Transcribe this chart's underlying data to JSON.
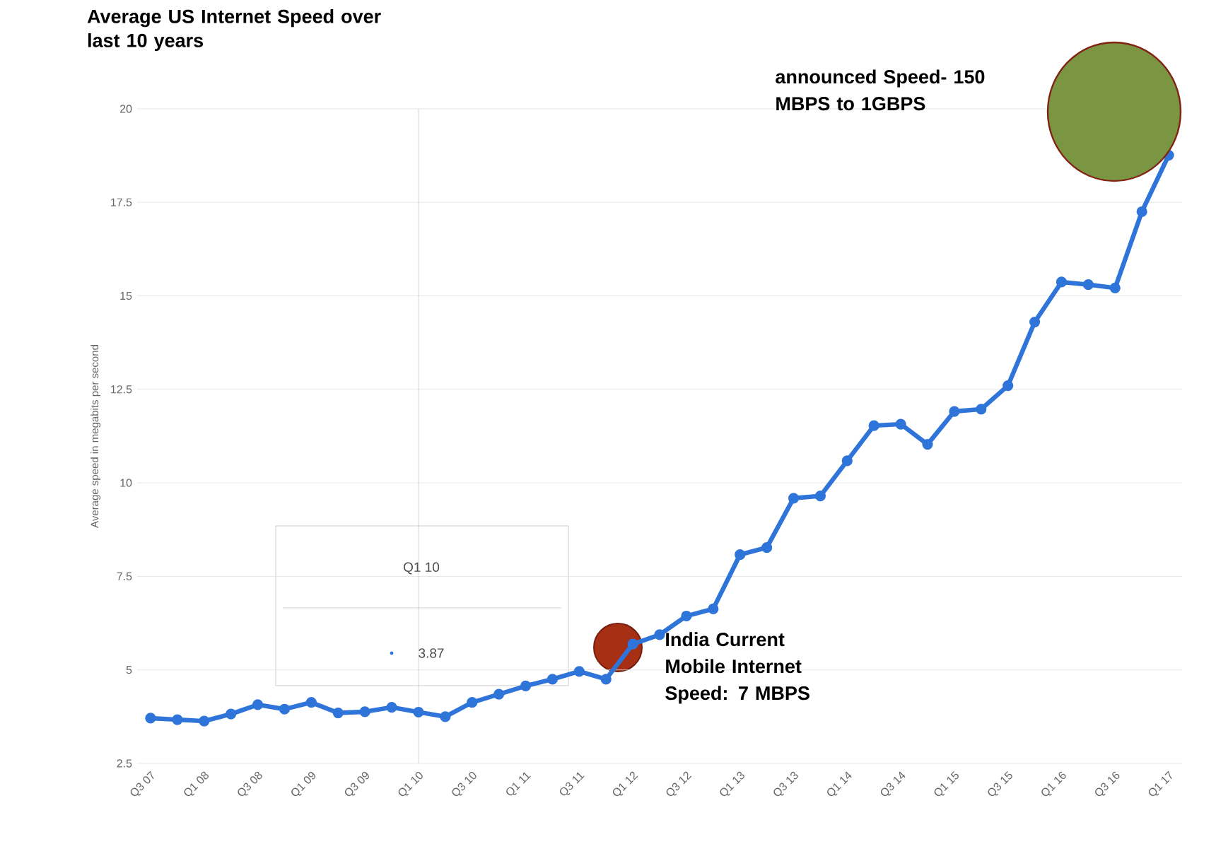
{
  "chart_data": {
    "type": "line",
    "title": "Average US Internet Speed over last 10 years",
    "ylabel": "Average speed in megabits per second",
    "categories": [
      "Q3 07",
      null,
      "Q1 08",
      null,
      "Q3 08",
      null,
      "Q1 09",
      null,
      "Q3 09",
      null,
      "Q1 10",
      null,
      "Q3 10",
      null,
      "Q1 11",
      null,
      "Q3 11",
      null,
      "Q1 12",
      null,
      "Q3 12",
      null,
      "Q1 13",
      null,
      "Q3 13",
      null,
      "Q1 14",
      null,
      "Q3 14",
      null,
      "Q1 15",
      null,
      "Q3 15",
      null,
      "Q1 16",
      null,
      "Q3 16",
      null,
      "Q1 17"
    ],
    "series": [
      {
        "color": "#2f74d8",
        "values": [
          3.71,
          3.67,
          3.63,
          3.82,
          4.07,
          3.95,
          4.13,
          3.85,
          3.88,
          4.0,
          3.87,
          3.75,
          4.13,
          4.35,
          4.57,
          4.75,
          4.96,
          4.75,
          5.69,
          5.94,
          6.44,
          6.63,
          8.08,
          8.27,
          9.59,
          9.65,
          10.59,
          11.53,
          11.57,
          11.03,
          11.91,
          11.97,
          12.6,
          14.3,
          15.37,
          15.3,
          15.21,
          17.25,
          18.76
        ]
      }
    ],
    "ylim": [
      2.5,
      20
    ],
    "yticks": [
      2.5,
      5,
      7.5,
      10,
      12.5,
      15,
      17.5,
      20
    ],
    "grid": "y",
    "marker": "circle",
    "line_style": "solid",
    "ref_lines": [
      {
        "axis": "x",
        "value": "Q1 10",
        "color": "#cccccc"
      }
    ],
    "annotations": [
      "Q1 10",
      "3.87",
      "India Current Mobile Internet Speed: 7 MBPS",
      "announced  Speed- 150 MBPS to 1GBPS"
    ]
  }
}
